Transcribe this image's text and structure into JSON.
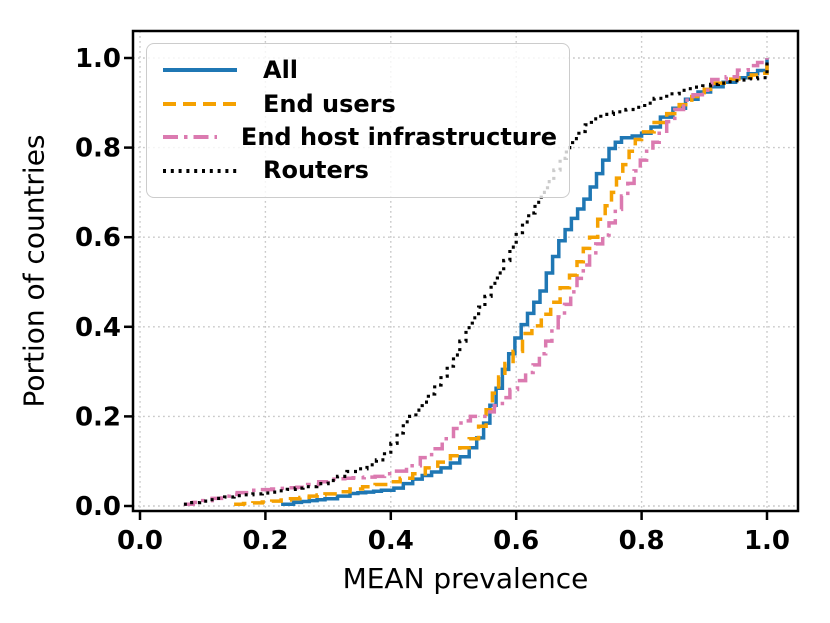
{
  "figure": {
    "background": "#ffffff"
  },
  "chart_data": {
    "type": "line",
    "subtype": "ecdf-step",
    "title": "",
    "xlabel": "MEAN prevalence",
    "ylabel": "Portion of countries",
    "xlim": [
      -0.01,
      1.05
    ],
    "ylim": [
      -0.01,
      1.06
    ],
    "grid": {
      "visible": true,
      "style": "dotted",
      "color": "#c9c9c9"
    },
    "axis_color": "#000000",
    "xticks": {
      "values": [
        0.0,
        0.2,
        0.4,
        0.6,
        0.8,
        1.0
      ],
      "labels": [
        "0.0",
        "0.2",
        "0.4",
        "0.6",
        "0.8",
        "1.0"
      ]
    },
    "yticks": {
      "values": [
        0.0,
        0.2,
        0.4,
        0.6,
        0.8,
        1.0
      ],
      "labels": [
        "0.0",
        "0.2",
        "0.4",
        "0.6",
        "0.8",
        "1.0"
      ]
    },
    "legend": {
      "position": "upper-left"
    },
    "series": [
      {
        "name": "All",
        "color": "#1f77b4",
        "linestyle": "solid",
        "linewidth": 3.5,
        "points": [
          [
            0.225,
            0.004
          ],
          [
            0.245,
            0.008
          ],
          [
            0.27,
            0.012
          ],
          [
            0.295,
            0.016
          ],
          [
            0.315,
            0.022
          ],
          [
            0.335,
            0.028
          ],
          [
            0.36,
            0.031
          ],
          [
            0.385,
            0.035
          ],
          [
            0.405,
            0.04
          ],
          [
            0.42,
            0.05
          ],
          [
            0.435,
            0.06
          ],
          [
            0.45,
            0.068
          ],
          [
            0.465,
            0.076
          ],
          [
            0.48,
            0.085
          ],
          [
            0.495,
            0.096
          ],
          [
            0.51,
            0.11
          ],
          [
            0.525,
            0.13
          ],
          [
            0.537,
            0.152
          ],
          [
            0.548,
            0.185
          ],
          [
            0.558,
            0.225
          ],
          [
            0.568,
            0.263
          ],
          [
            0.578,
            0.305
          ],
          [
            0.588,
            0.34
          ],
          [
            0.598,
            0.375
          ],
          [
            0.608,
            0.405
          ],
          [
            0.618,
            0.43
          ],
          [
            0.628,
            0.455
          ],
          [
            0.638,
            0.48
          ],
          [
            0.648,
            0.52
          ],
          [
            0.658,
            0.557
          ],
          [
            0.668,
            0.592
          ],
          [
            0.678,
            0.617
          ],
          [
            0.688,
            0.642
          ],
          [
            0.698,
            0.663
          ],
          [
            0.708,
            0.685
          ],
          [
            0.718,
            0.712
          ],
          [
            0.728,
            0.742
          ],
          [
            0.738,
            0.772
          ],
          [
            0.748,
            0.798
          ],
          [
            0.758,
            0.812
          ],
          [
            0.768,
            0.822
          ],
          [
            0.785,
            0.826
          ],
          [
            0.8,
            0.832
          ],
          [
            0.815,
            0.846
          ],
          [
            0.83,
            0.868
          ],
          [
            0.85,
            0.888
          ],
          [
            0.87,
            0.908
          ],
          [
            0.89,
            0.924
          ],
          [
            0.91,
            0.936
          ],
          [
            0.93,
            0.946
          ],
          [
            0.95,
            0.956
          ],
          [
            0.97,
            0.965
          ],
          [
            0.985,
            0.972
          ],
          [
            1.0,
            0.978
          ],
          [
            1.0,
            1.0
          ]
        ]
      },
      {
        "name": "End users",
        "color": "#f5a101",
        "linestyle": "dashed",
        "linewidth": 3.5,
        "points": [
          [
            0.15,
            0.004
          ],
          [
            0.18,
            0.007
          ],
          [
            0.21,
            0.011
          ],
          [
            0.24,
            0.016
          ],
          [
            0.27,
            0.022
          ],
          [
            0.295,
            0.027
          ],
          [
            0.315,
            0.032
          ],
          [
            0.335,
            0.038
          ],
          [
            0.355,
            0.043
          ],
          [
            0.375,
            0.048
          ],
          [
            0.395,
            0.054
          ],
          [
            0.415,
            0.062
          ],
          [
            0.435,
            0.072
          ],
          [
            0.455,
            0.085
          ],
          [
            0.475,
            0.098
          ],
          [
            0.495,
            0.112
          ],
          [
            0.51,
            0.13
          ],
          [
            0.525,
            0.15
          ],
          [
            0.54,
            0.178
          ],
          [
            0.552,
            0.215
          ],
          [
            0.562,
            0.252
          ],
          [
            0.572,
            0.288
          ],
          [
            0.582,
            0.318
          ],
          [
            0.595,
            0.345
          ],
          [
            0.61,
            0.385
          ],
          [
            0.625,
            0.402
          ],
          [
            0.64,
            0.428
          ],
          [
            0.655,
            0.455
          ],
          [
            0.67,
            0.487
          ],
          [
            0.685,
            0.515
          ],
          [
            0.697,
            0.545
          ],
          [
            0.707,
            0.575
          ],
          [
            0.717,
            0.6
          ],
          [
            0.73,
            0.64
          ],
          [
            0.742,
            0.67
          ],
          [
            0.752,
            0.7
          ],
          [
            0.76,
            0.732
          ],
          [
            0.77,
            0.762
          ],
          [
            0.78,
            0.792
          ],
          [
            0.79,
            0.818
          ],
          [
            0.8,
            0.835
          ],
          [
            0.82,
            0.856
          ],
          [
            0.84,
            0.876
          ],
          [
            0.86,
            0.896
          ],
          [
            0.88,
            0.914
          ],
          [
            0.9,
            0.93
          ],
          [
            0.917,
            0.944
          ],
          [
            0.935,
            0.953
          ],
          [
            0.955,
            0.956
          ],
          [
            0.975,
            0.962
          ],
          [
            0.99,
            0.966
          ],
          [
            1.0,
            0.97
          ],
          [
            1.0,
            1.0
          ]
        ]
      },
      {
        "name": "End host infrastructure",
        "color": "#db7ab0",
        "linestyle": "dashdot",
        "linewidth": 3.5,
        "points": [
          [
            0.07,
            0.004
          ],
          [
            0.1,
            0.012
          ],
          [
            0.13,
            0.022
          ],
          [
            0.155,
            0.03
          ],
          [
            0.175,
            0.035
          ],
          [
            0.21,
            0.038
          ],
          [
            0.25,
            0.042
          ],
          [
            0.285,
            0.054
          ],
          [
            0.3,
            0.06
          ],
          [
            0.34,
            0.063
          ],
          [
            0.375,
            0.066
          ],
          [
            0.405,
            0.078
          ],
          [
            0.425,
            0.09
          ],
          [
            0.447,
            0.108
          ],
          [
            0.465,
            0.128
          ],
          [
            0.482,
            0.15
          ],
          [
            0.5,
            0.173
          ],
          [
            0.512,
            0.19
          ],
          [
            0.527,
            0.2
          ],
          [
            0.55,
            0.21
          ],
          [
            0.565,
            0.224
          ],
          [
            0.578,
            0.242
          ],
          [
            0.59,
            0.26
          ],
          [
            0.602,
            0.28
          ],
          [
            0.615,
            0.298
          ],
          [
            0.627,
            0.315
          ],
          [
            0.637,
            0.34
          ],
          [
            0.647,
            0.368
          ],
          [
            0.657,
            0.398
          ],
          [
            0.667,
            0.422
          ],
          [
            0.677,
            0.45
          ],
          [
            0.687,
            0.478
          ],
          [
            0.697,
            0.508
          ],
          [
            0.707,
            0.538
          ],
          [
            0.717,
            0.565
          ],
          [
            0.727,
            0.585
          ],
          [
            0.738,
            0.605
          ],
          [
            0.748,
            0.632
          ],
          [
            0.758,
            0.662
          ],
          [
            0.768,
            0.692
          ],
          [
            0.778,
            0.72
          ],
          [
            0.788,
            0.748
          ],
          [
            0.798,
            0.772
          ],
          [
            0.808,
            0.792
          ],
          [
            0.818,
            0.812
          ],
          [
            0.828,
            0.832
          ],
          [
            0.84,
            0.858
          ],
          [
            0.853,
            0.885
          ],
          [
            0.867,
            0.906
          ],
          [
            0.882,
            0.918
          ],
          [
            0.897,
            0.928
          ],
          [
            0.912,
            0.952
          ],
          [
            0.935,
            0.958
          ],
          [
            0.953,
            0.973
          ],
          [
            0.97,
            0.983
          ],
          [
            0.985,
            0.99
          ],
          [
            1.0,
            1.0
          ]
        ]
      },
      {
        "name": "Routers",
        "color": "#000000",
        "linestyle": "dotted",
        "linewidth": 3.2,
        "points": [
          [
            0.07,
            0.004
          ],
          [
            0.095,
            0.011
          ],
          [
            0.12,
            0.017
          ],
          [
            0.15,
            0.023
          ],
          [
            0.18,
            0.027
          ],
          [
            0.21,
            0.031
          ],
          [
            0.235,
            0.037
          ],
          [
            0.26,
            0.043
          ],
          [
            0.282,
            0.05
          ],
          [
            0.3,
            0.057
          ],
          [
            0.315,
            0.066
          ],
          [
            0.33,
            0.077
          ],
          [
            0.347,
            0.083
          ],
          [
            0.362,
            0.092
          ],
          [
            0.377,
            0.103
          ],
          [
            0.39,
            0.12
          ],
          [
            0.4,
            0.14
          ],
          [
            0.41,
            0.163
          ],
          [
            0.42,
            0.188
          ],
          [
            0.43,
            0.2
          ],
          [
            0.44,
            0.214
          ],
          [
            0.45,
            0.232
          ],
          [
            0.46,
            0.25
          ],
          [
            0.47,
            0.27
          ],
          [
            0.48,
            0.29
          ],
          [
            0.49,
            0.312
          ],
          [
            0.5,
            0.337
          ],
          [
            0.51,
            0.368
          ],
          [
            0.52,
            0.398
          ],
          [
            0.53,
            0.42
          ],
          [
            0.54,
            0.444
          ],
          [
            0.55,
            0.468
          ],
          [
            0.56,
            0.497
          ],
          [
            0.57,
            0.52
          ],
          [
            0.58,
            0.548
          ],
          [
            0.59,
            0.578
          ],
          [
            0.6,
            0.61
          ],
          [
            0.61,
            0.634
          ],
          [
            0.62,
            0.654
          ],
          [
            0.63,
            0.678
          ],
          [
            0.64,
            0.7
          ],
          [
            0.65,
            0.724
          ],
          [
            0.66,
            0.75
          ],
          [
            0.67,
            0.776
          ],
          [
            0.68,
            0.8
          ],
          [
            0.69,
            0.82
          ],
          [
            0.7,
            0.836
          ],
          [
            0.71,
            0.851
          ],
          [
            0.72,
            0.864
          ],
          [
            0.735,
            0.874
          ],
          [
            0.755,
            0.88
          ],
          [
            0.775,
            0.885
          ],
          [
            0.79,
            0.89
          ],
          [
            0.805,
            0.899
          ],
          [
            0.82,
            0.91
          ],
          [
            0.84,
            0.92
          ],
          [
            0.86,
            0.928
          ],
          [
            0.885,
            0.935
          ],
          [
            0.91,
            0.941
          ],
          [
            0.935,
            0.947
          ],
          [
            0.96,
            0.951
          ],
          [
            0.985,
            0.956
          ],
          [
            1.0,
            0.96
          ],
          [
            1.0,
            1.0
          ]
        ]
      }
    ]
  }
}
